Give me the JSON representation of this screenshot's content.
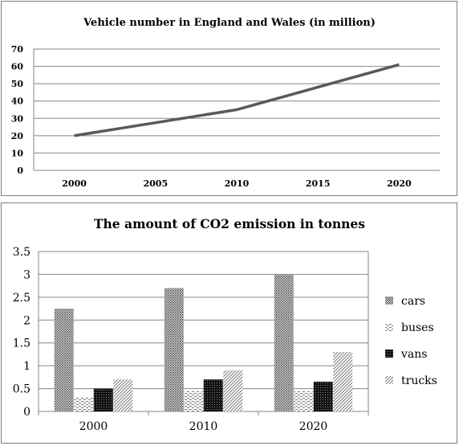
{
  "chart_data": [
    {
      "type": "line",
      "title": "Vehicle number in England and Wales (in million)",
      "xlabel": "",
      "ylabel": "",
      "categories": [
        "2000",
        "2005",
        "2010",
        "2015",
        "2020"
      ],
      "series": [
        {
          "values": [
            20,
            27.5,
            35,
            48,
            61
          ]
        }
      ],
      "ylim": [
        0,
        70
      ],
      "yticks": [
        0,
        10,
        20,
        30,
        40,
        50,
        60,
        70
      ],
      "ytick_labels": [
        "0",
        "10",
        "20",
        "30",
        "40",
        "50",
        "60",
        "70"
      ],
      "grid": true,
      "line_color": "#595959"
    },
    {
      "type": "bar",
      "title": "The amount of CO2 emission in tonnes",
      "xlabel": "",
      "ylabel": "",
      "categories": [
        "2000",
        "2010",
        "2020"
      ],
      "series": [
        {
          "name": "cars",
          "values": [
            2.25,
            2.7,
            3.0
          ],
          "pattern": "dots"
        },
        {
          "name": "buses",
          "values": [
            0.3,
            0.45,
            0.45
          ],
          "pattern": "dashes"
        },
        {
          "name": "vans",
          "values": [
            0.5,
            0.7,
            0.65
          ],
          "pattern": "grid-dark"
        },
        {
          "name": "trucks",
          "values": [
            0.7,
            0.9,
            1.3
          ],
          "pattern": "diag"
        }
      ],
      "ylim": [
        0,
        3.5
      ],
      "yticks": [
        0,
        0.5,
        1,
        1.5,
        2,
        2.5,
        3,
        3.5
      ],
      "ytick_labels": [
        "0",
        "0.5",
        "1",
        "1.5",
        "2",
        "2.5",
        "3",
        "3.5"
      ],
      "grid": true,
      "legend": "right"
    }
  ]
}
